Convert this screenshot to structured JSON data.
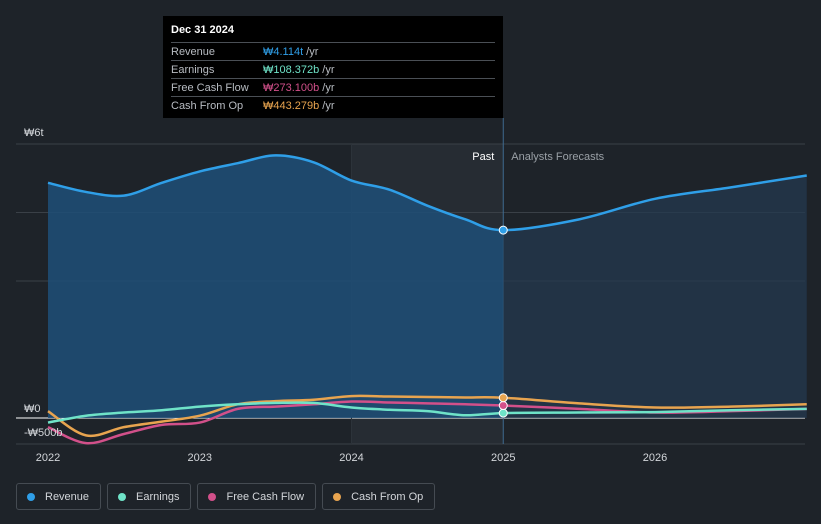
{
  "tooltip": {
    "date": "Dec 31 2024",
    "rows": [
      {
        "label": "Revenue",
        "value": "₩4.114t",
        "unit": "/yr",
        "color": "#2f9fe8"
      },
      {
        "label": "Earnings",
        "value": "₩108.372b",
        "unit": "/yr",
        "color": "#6fe3c8"
      },
      {
        "label": "Free Cash Flow",
        "value": "₩273.100b",
        "unit": "/yr",
        "color": "#d2508a"
      },
      {
        "label": "Cash From Op",
        "value": "₩443.279b",
        "unit": "/yr",
        "color": "#e8a44f"
      }
    ]
  },
  "legend": [
    {
      "label": "Revenue",
      "color": "#2f9fe8"
    },
    {
      "label": "Earnings",
      "color": "#6fe3c8"
    },
    {
      "label": "Free Cash Flow",
      "color": "#d2508a"
    },
    {
      "label": "Cash From Op",
      "color": "#e8a44f"
    }
  ],
  "chart_data": {
    "type": "line",
    "title": "",
    "xlabel": "",
    "ylabel": "",
    "x_ticks": [
      "2022",
      "2023",
      "2024",
      "2025",
      "2026"
    ],
    "y_ticks": [
      "₩6t",
      "₩0",
      "-₩500b"
    ],
    "xlim": [
      2022.0,
      2027.0
    ],
    "ylim": [
      -500,
      6000
    ],
    "y_unit": "₩b",
    "past_label": "Past",
    "forecast_label": "Analysts Forecasts",
    "divider_x": 2025.0,
    "shaded_past_start": 2024.0,
    "grid": true,
    "legend_position": "bottom-left",
    "series": [
      {
        "name": "Revenue",
        "color": "#2f9fe8",
        "x": [
          2022.0,
          2022.25,
          2022.5,
          2022.75,
          2023.0,
          2023.25,
          2023.5,
          2023.75,
          2024.0,
          2024.25,
          2024.5,
          2024.75,
          2025.0,
          2025.5,
          2026.0,
          2026.5,
          2027.0
        ],
        "values": [
          5150,
          4950,
          4870,
          5150,
          5400,
          5580,
          5750,
          5600,
          5200,
          5000,
          4650,
          4350,
          4114,
          4350,
          4800,
          5050,
          5310
        ]
      },
      {
        "name": "Earnings",
        "color": "#6fe3c8",
        "x": [
          2022.0,
          2022.25,
          2022.5,
          2022.75,
          2023.0,
          2023.25,
          2023.5,
          2023.75,
          2024.0,
          2024.25,
          2024.5,
          2024.75,
          2025.0,
          2025.5,
          2026.0,
          2026.5,
          2027.0
        ],
        "values": [
          -100,
          50,
          120,
          170,
          250,
          300,
          330,
          330,
          230,
          180,
          150,
          60,
          108,
          120,
          130,
          170,
          200
        ]
      },
      {
        "name": "Free Cash Flow",
        "color": "#d2508a",
        "x": [
          2022.0,
          2022.25,
          2022.5,
          2022.75,
          2023.0,
          2023.25,
          2023.5,
          2023.75,
          2024.0,
          2024.25,
          2024.5,
          2024.75,
          2025.0,
          2025.5,
          2026.0,
          2026.5,
          2027.0
        ],
        "values": [
          -200,
          -550,
          -350,
          -150,
          -100,
          200,
          250,
          300,
          360,
          340,
          320,
          300,
          273,
          200,
          120,
          150,
          200
        ]
      },
      {
        "name": "Cash From Op",
        "color": "#e8a44f",
        "x": [
          2022.0,
          2022.25,
          2022.5,
          2022.75,
          2023.0,
          2023.25,
          2023.5,
          2023.75,
          2024.0,
          2024.25,
          2024.5,
          2024.75,
          2025.0,
          2025.5,
          2026.0,
          2026.5,
          2027.0
        ],
        "values": [
          150,
          -380,
          -200,
          -80,
          50,
          300,
          370,
          400,
          480,
          470,
          460,
          450,
          443,
          320,
          230,
          250,
          300
        ]
      }
    ]
  }
}
